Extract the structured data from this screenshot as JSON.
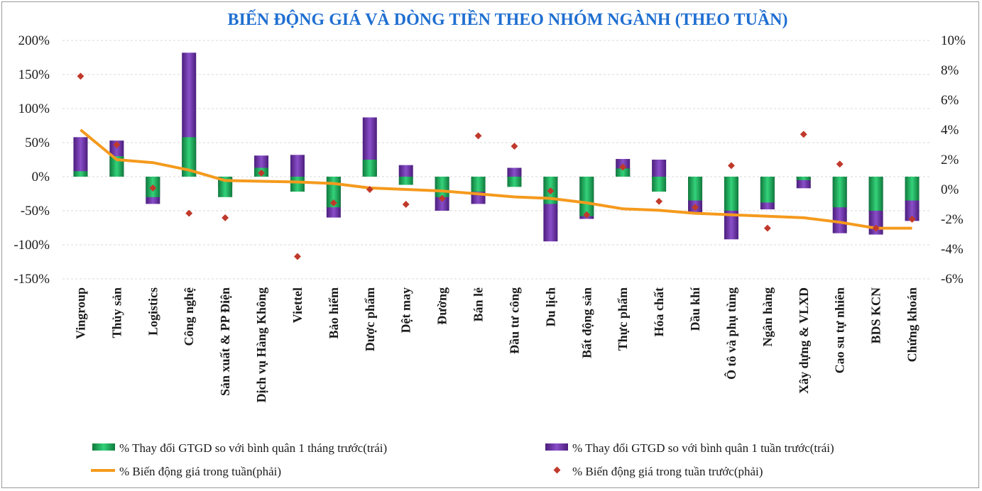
{
  "chart_data": {
    "type": "bar",
    "title": "BIẾN ĐỘNG GIÁ VÀ DÒNG TIỀN THEO NHÓM NGÀNH (THEO TUẦN)",
    "categories": [
      "Vingroup",
      "Thủy sản",
      "Logistics",
      "Công nghệ",
      "Sản xuất & PP Điện",
      "Dịch vụ Hàng Không",
      "Viettel",
      "Bảo hiểm",
      "Dược phẩm",
      "Dệt may",
      "Đường",
      "Bán lẻ",
      "Đầu tư công",
      "Du lịch",
      "Bất động sản",
      "Thực phẩm",
      "Hóa chất",
      "Dầu khí",
      "Ô tô và phụ tùng",
      "Ngân hàng",
      "Xây dựng & VLXD",
      "Cao su tự nhiên",
      "BDS KCN",
      "Chứng khoán"
    ],
    "y_left": {
      "min": -150,
      "max": 200,
      "step": 50,
      "ticks": [
        "200%",
        "150%",
        "100%",
        "50%",
        "0%",
        "-50%",
        "-100%",
        "-150%"
      ]
    },
    "y_right": {
      "min": -6,
      "max": 10,
      "step": 2,
      "ticks": [
        "10%",
        "8%",
        "6%",
        "4%",
        "2%",
        "0%",
        "-2%",
        "-4%",
        "-6%"
      ]
    },
    "series": [
      {
        "name": "% Thay đổi GTGD so với bình quân 1 tháng trước(trái)",
        "axis": "left",
        "kind": "bar",
        "color": "#1fae5a",
        "values": [
          8,
          30,
          -30,
          58,
          -30,
          13,
          -22,
          -45,
          25,
          -12,
          -30,
          -22,
          -15,
          -40,
          -58,
          12,
          -22,
          -35,
          -50,
          -38,
          -5,
          -45,
          -50,
          -35
        ]
      },
      {
        "name": "% Thay đổi GTGD so với bình quân 1 tuần trước(trái)",
        "axis": "left",
        "kind": "bar",
        "color": "#6a2fa5",
        "values": [
          58,
          53,
          -40,
          182,
          -15,
          31,
          32,
          -60,
          87,
          17,
          -50,
          -40,
          13,
          -95,
          -62,
          26,
          25,
          -55,
          -92,
          -48,
          -17,
          -83,
          -85,
          -65
        ]
      },
      {
        "name": "% Biến động giá trong tuần(phải)",
        "axis": "right",
        "kind": "line",
        "color": "#f59a1d",
        "values": [
          4.0,
          2.0,
          1.8,
          1.3,
          0.6,
          0.55,
          0.5,
          0.4,
          0.1,
          0.0,
          -0.1,
          -0.3,
          -0.5,
          -0.6,
          -0.9,
          -1.3,
          -1.4,
          -1.6,
          -1.7,
          -1.8,
          -1.9,
          -2.2,
          -2.6,
          -2.6
        ]
      },
      {
        "name": "% Biến động giá trong tuần trước(phải)",
        "axis": "right",
        "kind": "scatter",
        "color": "#c0392b",
        "values": [
          7.6,
          3.0,
          0.1,
          -1.6,
          -1.9,
          1.1,
          -4.5,
          -0.9,
          0.0,
          -1.0,
          -0.6,
          3.6,
          2.9,
          -0.1,
          -1.7,
          1.5,
          -0.8,
          -1.2,
          1.6,
          -2.6,
          3.7,
          1.7,
          -2.6,
          -2.0
        ]
      }
    ],
    "legend": {
      "position": "bottom",
      "items": [
        "% Thay đổi GTGD so với bình quân 1 tháng trước(trái)",
        "% Thay đổi GTGD so với bình quân 1 tuần trước(trái)",
        "% Biến động giá trong tuần(phải)",
        "% Biến động giá trong tuần trước(phải)"
      ]
    },
    "grid": true
  }
}
